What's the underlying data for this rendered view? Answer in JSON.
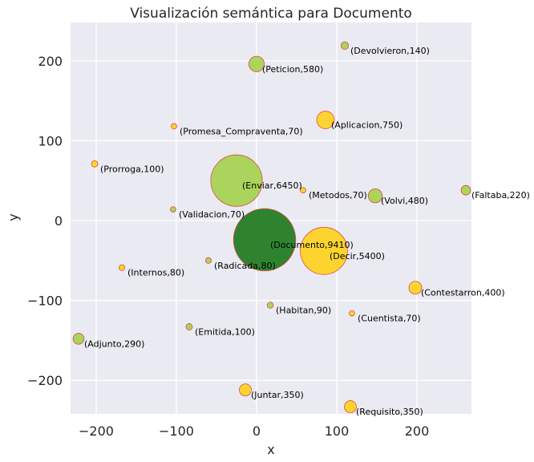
{
  "colors": {
    "plot_bg": "#eaeaf2",
    "grid": "#ffffff",
    "edge": "#e0484a",
    "yellow": "#ffd21a",
    "lightgreen": "#a3d14a",
    "darkgreen": "#1e7a1e"
  },
  "chart_data": {
    "type": "scatter",
    "title": "Visualización semántica para Documento",
    "xlabel": "x",
    "ylabel": "y",
    "xlim": [
      -232,
      268
    ],
    "ylim": [
      -242,
      248
    ],
    "xticks": [
      -200,
      -100,
      0,
      100,
      200
    ],
    "yticks": [
      -200,
      -100,
      0,
      100,
      200
    ],
    "xtick_labels": [
      "−200",
      "−100",
      "0",
      "100",
      "200"
    ],
    "ytick_labels": [
      "−200",
      "−100",
      "0",
      "100",
      "200"
    ],
    "grid": true,
    "points": [
      {
        "word": "Devolvieron",
        "size": 140,
        "x": 110,
        "y": 219,
        "label": "(Devolvieron,140)",
        "color": "lightgreen"
      },
      {
        "word": "Peticion",
        "size": 580,
        "x": 0,
        "y": 196,
        "label": "(Peticion,580)",
        "color": "lightgreen"
      },
      {
        "word": "Aplicacion",
        "size": 750,
        "x": 86,
        "y": 126,
        "label": "(Aplicacion,750)",
        "color": "yellow"
      },
      {
        "word": "Promesa_Compraventa",
        "size": 70,
        "x": -103,
        "y": 118,
        "label": "(Promesa_Compraventa,70)",
        "color": "yellow"
      },
      {
        "word": "Prorroga",
        "size": 100,
        "x": -202,
        "y": 71,
        "label": "(Prorroga,100)",
        "color": "yellow"
      },
      {
        "word": "Enviar",
        "size": 6450,
        "x": -25,
        "y": 50,
        "label": "(Enviar,6450)",
        "color": "lightgreen"
      },
      {
        "word": "Metodos",
        "size": 70,
        "x": 58,
        "y": 38,
        "label": "(Metodos,70)",
        "color": "yellow"
      },
      {
        "word": "Volvi",
        "size": 480,
        "x": 148,
        "y": 31,
        "label": "(Volvi,480)",
        "color": "lightgreen"
      },
      {
        "word": "Faltaba",
        "size": 220,
        "x": 261,
        "y": 38,
        "label": "(Faltaba,220)",
        "color": "lightgreen"
      },
      {
        "word": "Validacion",
        "size": 70,
        "x": -104,
        "y": 14,
        "label": "(Validacion,70)",
        "color": "lightgreen"
      },
      {
        "word": "Documento",
        "size": 9410,
        "x": 10,
        "y": -24,
        "label": "(Documento,9410)",
        "color": "darkgreen"
      },
      {
        "word": "Decir",
        "size": 5400,
        "x": 84,
        "y": -38,
        "label": "(Decir,5400)",
        "color": "yellow"
      },
      {
        "word": "Radicada",
        "size": 80,
        "x": -60,
        "y": -50,
        "label": "(Radicada,80)",
        "color": "lightgreen"
      },
      {
        "word": "Internos",
        "size": 80,
        "x": -168,
        "y": -59,
        "label": "(Internos,80)",
        "color": "yellow"
      },
      {
        "word": "Contestarron",
        "size": 400,
        "x": 198,
        "y": -84,
        "label": "(Contestarron,400)",
        "color": "yellow"
      },
      {
        "word": "Habitan",
        "size": 90,
        "x": 17,
        "y": -106,
        "label": "(Habitan,90)",
        "color": "lightgreen"
      },
      {
        "word": "Cuentista",
        "size": 70,
        "x": 119,
        "y": -116,
        "label": "(Cuentista,70)",
        "color": "yellow"
      },
      {
        "word": "Emitida",
        "size": 100,
        "x": -84,
        "y": -133,
        "label": "(Emitida,100)",
        "color": "lightgreen"
      },
      {
        "word": "Adjunto",
        "size": 290,
        "x": -222,
        "y": -148,
        "label": "(Adjunto,290)",
        "color": "lightgreen"
      },
      {
        "word": "Juntar",
        "size": 350,
        "x": -14,
        "y": -212,
        "label": "(Juntar,350)",
        "color": "yellow"
      },
      {
        "word": "Requisito",
        "size": 350,
        "x": 117,
        "y": -233,
        "label": "(Requisito,350)",
        "color": "yellow"
      }
    ]
  }
}
